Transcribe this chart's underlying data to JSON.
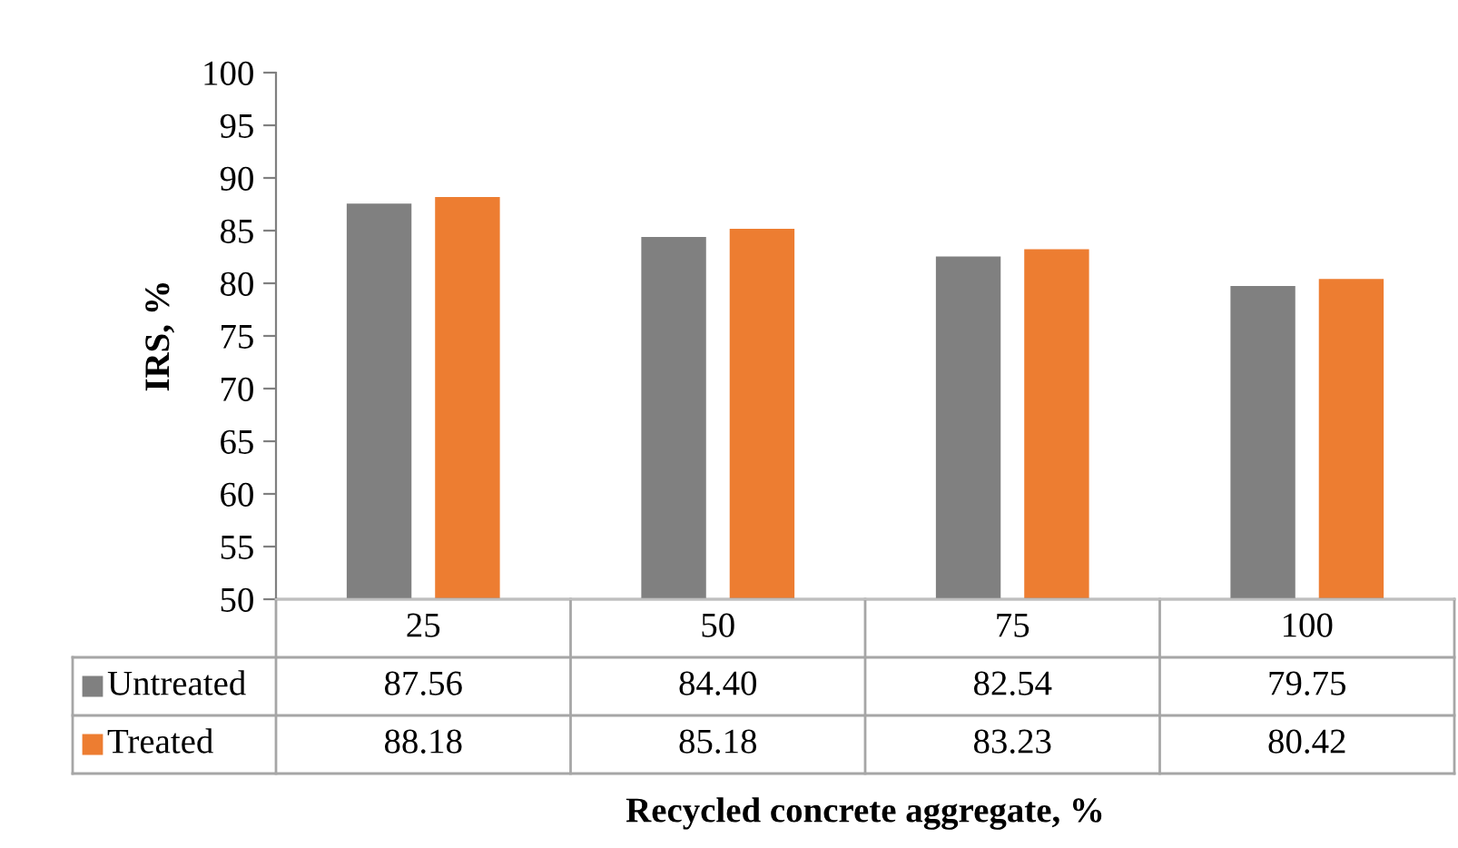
{
  "chart_data": {
    "type": "bar",
    "xlabel": "Recycled concrete aggregate, %",
    "ylabel": "IRS, %",
    "categories": [
      "25",
      "50",
      "75",
      "100"
    ],
    "series": [
      {
        "name": "Untreated",
        "color": "#808080",
        "values": [
          87.56,
          84.4,
          82.54,
          79.75
        ],
        "value_labels": [
          "87.56",
          "84.40",
          "82.54",
          "79.75"
        ]
      },
      {
        "name": "Treated",
        "color": "#ed7d31",
        "values": [
          88.18,
          85.18,
          83.23,
          80.42
        ],
        "value_labels": [
          "88.18",
          "85.18",
          "83.23",
          "80.42"
        ]
      }
    ],
    "ylim": [
      50,
      100
    ],
    "yticks": [
      50,
      55,
      60,
      65,
      70,
      75,
      80,
      85,
      90,
      95,
      100
    ],
    "grid": false,
    "legend": "bottom"
  }
}
